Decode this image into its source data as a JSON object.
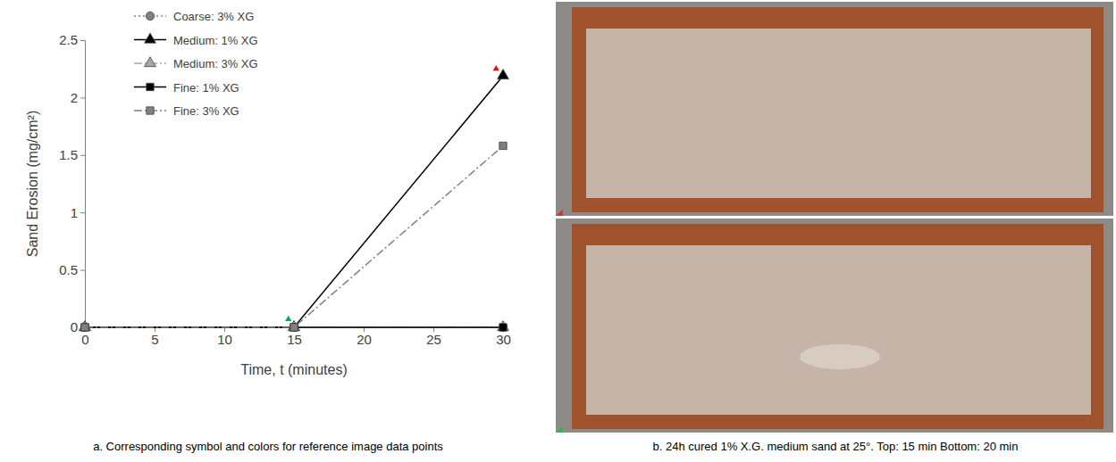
{
  "chart_data": {
    "type": "line",
    "x_label": "Time, t (minutes)",
    "y_label": "Sand Erosion (mg/cm²)",
    "x": [
      0,
      15,
      30
    ],
    "series": [
      {
        "name": "Coarse: 3% XG",
        "color": "#808080",
        "marker": "circle",
        "line_style": "dotted",
        "values": [
          0,
          0,
          0
        ]
      },
      {
        "name": "Medium: 1% XG",
        "color": "#000000",
        "marker": "triangle",
        "line_style": "solid",
        "values": [
          0,
          0,
          2.19
        ]
      },
      {
        "name": "Medium: 3% XG",
        "color": "#a6a6a6",
        "marker": "triangle",
        "line_style": "dashdot",
        "values": [
          0,
          0,
          0
        ]
      },
      {
        "name": "Fine: 1% XG",
        "color": "#000000",
        "marker": "square",
        "line_style": "solid",
        "values": [
          0,
          0,
          0
        ]
      },
      {
        "name": "Fine: 3% XG",
        "color": "#808080",
        "marker": "square",
        "line_style": "dashdot",
        "values": [
          0,
          0,
          1.58
        ]
      }
    ],
    "reference_points": [
      {
        "x": 14.6,
        "y": 0.07,
        "color": "#00b050"
      },
      {
        "x": 29.5,
        "y": 2.25,
        "color": "#ff0000"
      }
    ],
    "xlim": [
      0,
      30
    ],
    "xticks": [
      0,
      5,
      10,
      15,
      20,
      25,
      30
    ],
    "ylim": [
      0,
      2.5
    ],
    "yticks": [
      0,
      0.5,
      1,
      1.5,
      2,
      2.5
    ],
    "grid": false,
    "legend": "top-left",
    "caption": "a. Corresponding symbol and colors for reference image data points"
  },
  "photo_panel": {
    "caption": "b. 24h cured 1% X.G. medium sand at 25°. Top: 15 min  Bottom: 20 min"
  }
}
